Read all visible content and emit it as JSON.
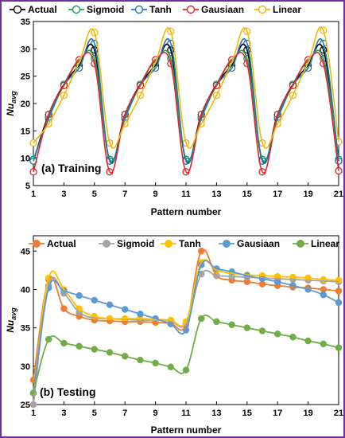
{
  "chart_data": [
    {
      "type": "line",
      "panel_label": "(a) Training",
      "xlabel": "Pattern number",
      "ylabel": "Nu",
      "ylabel_sub": "avg",
      "xlim": [
        1,
        21
      ],
      "ylim": [
        5,
        35
      ],
      "xticks": [
        1,
        3,
        5,
        7,
        9,
        11,
        13,
        15,
        17,
        19,
        21
      ],
      "yticks": [
        5,
        10,
        15,
        20,
        25,
        30,
        35
      ],
      "grid": false,
      "legend_position": "top",
      "x": [
        1,
        2,
        3,
        4,
        5,
        6,
        7,
        8,
        9,
        10,
        11,
        12,
        13,
        14,
        15,
        16,
        17,
        18,
        19,
        20,
        21
      ],
      "series": [
        {
          "name": "Actual",
          "color": "#000000",
          "values": [
            9.5,
            18,
            23.5,
            27,
            29.8,
            9.5,
            18,
            23.5,
            27,
            29.8,
            9.5,
            18,
            23.5,
            27,
            29.8,
            9.5,
            18,
            23.5,
            27,
            29.8,
            9.5
          ]
        },
        {
          "name": "Sigmoid",
          "color": "#1aa260",
          "values": [
            9.8,
            17.2,
            23.5,
            27.8,
            28.2,
            9.8,
            17.2,
            23.5,
            27.8,
            28.2,
            9.8,
            17.2,
            23.5,
            27.8,
            28.2,
            9.8,
            17.2,
            23.5,
            27.8,
            28.2,
            9.8
          ]
        },
        {
          "name": "Tanh",
          "color": "#1f77b4",
          "values": [
            9.5,
            17.5,
            23.3,
            26.5,
            31,
            9.5,
            17.5,
            23.3,
            26.5,
            31,
            9.5,
            17.5,
            23.3,
            26.5,
            31,
            9.5,
            17.5,
            23.3,
            26.5,
            31,
            9.5
          ]
        },
        {
          "name": "Gausiaan",
          "color": "#e3262c",
          "values": [
            7.5,
            18,
            23.3,
            28,
            27.3,
            7.5,
            18,
            23.3,
            28,
            27.3,
            7.5,
            18,
            23.3,
            28,
            27.3,
            7.5,
            18,
            23.3,
            28,
            27.3,
            7.7
          ]
        },
        {
          "name": "Linear",
          "color": "#f2b705",
          "values": [
            12.8,
            16.3,
            21.5,
            27.5,
            33,
            12.8,
            16.3,
            21.5,
            27.5,
            33.2,
            12.8,
            16.3,
            21.5,
            27.5,
            33.2,
            12.8,
            16.3,
            21.5,
            27.5,
            33.4,
            13
          ]
        }
      ]
    },
    {
      "type": "line",
      "panel_label": "(b) Testing",
      "xlabel": "Pattern number",
      "ylabel": "Nu",
      "ylabel_sub": "avg",
      "xlim": [
        1,
        21
      ],
      "ylim": [
        25,
        47
      ],
      "xticks": [
        1,
        3,
        5,
        7,
        9,
        11,
        13,
        15,
        17,
        19,
        21
      ],
      "yticks": [
        25,
        30,
        35,
        40,
        45
      ],
      "grid": false,
      "legend_position": "top",
      "x": [
        1,
        2,
        3,
        4,
        5,
        6,
        7,
        8,
        9,
        10,
        11,
        12,
        13,
        14,
        15,
        16,
        17,
        18,
        19,
        20,
        21
      ],
      "series": [
        {
          "name": "Actual",
          "color": "#ed7d31",
          "values": [
            28.2,
            41.3,
            37.5,
            36.5,
            36,
            35.9,
            35.8,
            35.8,
            35.7,
            35.6,
            35.4,
            45,
            41.8,
            41.2,
            41,
            40.7,
            40.5,
            40.3,
            40.2,
            40,
            39.8
          ]
        },
        {
          "name": "Sigmoid",
          "color": "#a5a5a5",
          "values": [
            25,
            40.5,
            39.5,
            37,
            36.3,
            36.2,
            36.1,
            36,
            36,
            35.9,
            35.5,
            42,
            41.8,
            41.7,
            41.6,
            41.5,
            41.4,
            41.3,
            41.2,
            41.1,
            41
          ]
        },
        {
          "name": "Tanh",
          "color": "#ffc000",
          "values": [
            26.5,
            41.5,
            40,
            37.5,
            36.5,
            36.2,
            36.2,
            36.2,
            36.1,
            36,
            35.8,
            43.5,
            42.5,
            42.1,
            41.9,
            41.8,
            41.7,
            41.6,
            41.5,
            41.3,
            41.2
          ]
        },
        {
          "name": "Gausiaan",
          "color": "#5b9bd5",
          "values": [
            26.5,
            40.2,
            39.8,
            39.2,
            38.6,
            38,
            37.4,
            36.8,
            36.2,
            35.5,
            34.7,
            43.2,
            42.7,
            42.3,
            41.8,
            41.4,
            41,
            40.5,
            40,
            39.3,
            38.3
          ]
        },
        {
          "name": "Linear",
          "color": "#70ad47",
          "values": [
            26.5,
            33.5,
            33,
            32.6,
            32.2,
            31.8,
            31.3,
            30.8,
            30.4,
            29.9,
            29.5,
            36.2,
            35.8,
            35.4,
            35,
            34.6,
            34.2,
            33.8,
            33.3,
            32.9,
            32.4
          ]
        }
      ]
    }
  ]
}
